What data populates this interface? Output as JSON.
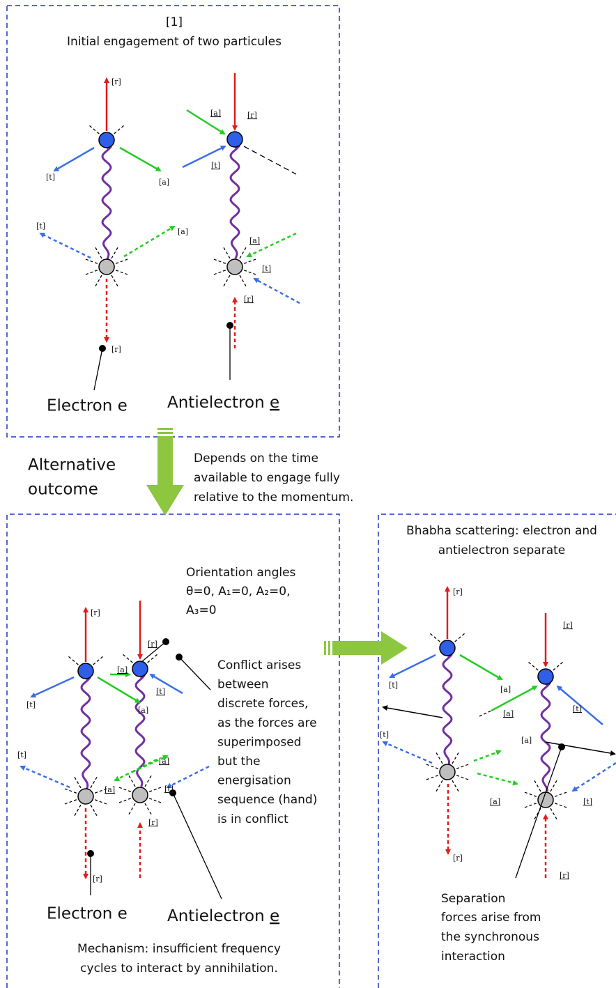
{
  "panel1": {
    "number": "[1]",
    "title": "Initial engagement of two particules",
    "electron": "Electron e",
    "antielectron": {
      "name": "Antielectron",
      "symbol": "e"
    },
    "force_labels": [
      "[r]",
      "[t]",
      "[a]",
      "[t]",
      "[a]",
      "[r]",
      "[a]",
      "[r]",
      "[t]",
      "[a]",
      "[t]",
      "[r]"
    ]
  },
  "transition": {
    "label": [
      "Alternative",
      "outcome"
    ],
    "note": [
      "Depends on the time",
      "available to engage fully",
      "relative to the momentum."
    ]
  },
  "panel2": {
    "orientation": [
      "Orientation angles",
      "θ=0, A₁=0, A₂=0,",
      "A₃=0"
    ],
    "conflict": [
      "Conflict arises",
      "between",
      "discrete forces,",
      "as the forces are",
      "superimposed",
      "but the",
      "energisation",
      "sequence (hand)",
      "is in conflict"
    ],
    "force_labels": [
      "[r]",
      "[r]",
      "[t]",
      "[a]",
      "[t]",
      "[a]",
      "[t]",
      "[a]",
      "[a]",
      "[t]",
      "[r]",
      "[r]"
    ],
    "electron": "Electron e",
    "antielectron": {
      "name": "Antielectron",
      "symbol": "e"
    },
    "mechanism": [
      "Mechanism: insufficient frequency",
      "cycles to interact by annihilation."
    ]
  },
  "panel3": {
    "title": [
      "Bhabha scattering: electron and",
      "antielectron separate"
    ],
    "force_labels": [
      "[r]",
      "[r]",
      "[t]",
      "[a]",
      "[a]",
      "[t]",
      "[a]",
      "[t]",
      "[a]",
      "[t]",
      "[r]",
      "[r]"
    ],
    "separation": [
      "Separation",
      "forces arise from",
      "the synchronous",
      "interaction"
    ]
  }
}
